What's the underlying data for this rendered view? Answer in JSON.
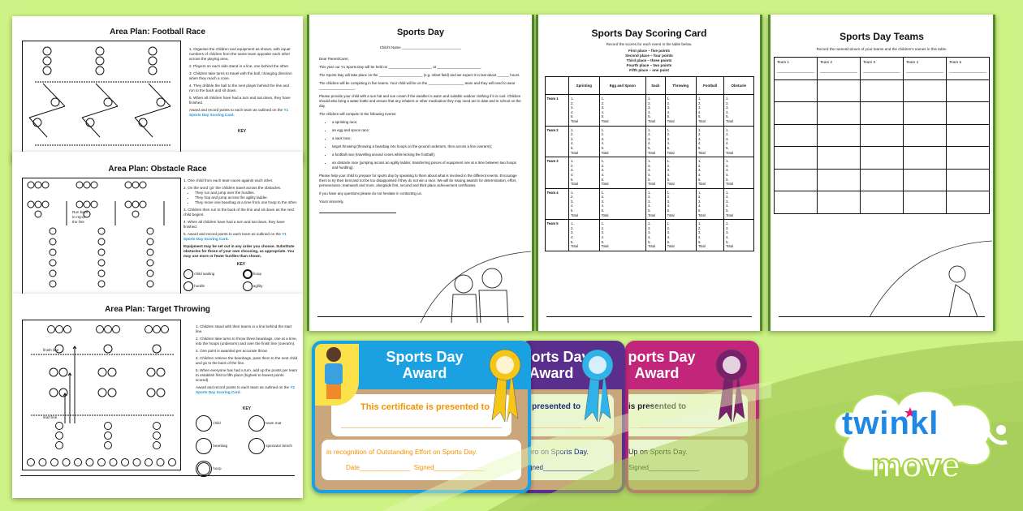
{
  "football": {
    "title": "Area Plan: Football Race",
    "steps": [
      "1. Organise the children and equipment as shown, with equal numbers of children from the same team opposite each other across the playing area.",
      "2. Players on each side stand in a line, one behind the other.",
      "3. Children take turns to travel with the ball, changing direction when they reach a cone.",
      "4. They dribble the ball to the next player behind the line and run to the back and sit down.",
      "5. When all children have had a turn and sat down, they have finished."
    ],
    "award_text": "Award and record points to each team as outlined on the",
    "award_link": "Y1 Sports Day Scoring Card.",
    "key": "KEY"
  },
  "obstacle": {
    "title": "Area Plan: Obstacle Race",
    "run_back": "Run back to rejoin the line",
    "steps": [
      "1. One child from each team races against each other.",
      "2. On the word 'go' the children travel across the obstacles.",
      "3. Children then run to the back of the line and sit down as the next child begins.",
      "4. When all children have had a turn and sat down, they have finished.",
      "5. Award and record points to each team as outlined on the"
    ],
    "substeps": [
      "They run and jump over the hurdles.",
      "They hop and jump across the agility ladder.",
      "They move one beanbag at a time from one hoop to the other."
    ],
    "award_link": "Y1 Sports Day Scoring Card.",
    "note": "Equipment may be set out in any order you choose. Substitute obstacles for those of your own choosing, as appropriate. You may use more or fewer hurdles than shown.",
    "key": "KEY",
    "key_items": [
      "child waiting",
      "hoop",
      "hurdle",
      "agility"
    ]
  },
  "target": {
    "title": "Area Plan: Target Throwing",
    "finish_line": "finish line",
    "start_line": "start line",
    "steps": [
      "1. Children stand with their teams in a line behind the start line.",
      "2. Children take turns to throw three beanbags, one at a time, into the hoops (underarm) and over the finish line (overarm).",
      "3. One point is awarded per accurate throw.",
      "4. Children retrieve the beanbags, pass them to the next child and go to the back of the line.",
      "5. When everyone has had a turn, add up the points per team to establish first to fifth place (highest to lowest points scored)."
    ],
    "award_text": "Award and record points to each team as outlined on the",
    "award_link": "Y1 Sports Day Scoring Card.",
    "key": "KEY",
    "key_items": [
      "child",
      "team mat",
      "beanbag",
      "spectator bench",
      "hoop"
    ]
  },
  "letter": {
    "title": "Sports Day",
    "childs_name": "Child's Name ______________________________",
    "paragraphs": [
      "Dear Parent/Carer,",
      "This year our Y1 Sports Day will be held on ______________________ at ______________________.",
      "The Sports Day will take place on the ______________________ (e.g. infant field) and we expect it to last about ______ hours.",
      "The children will be competing in five teams. Your child will be on the __________________ team and they will need to wear __________________.",
      "Please provide your child with a sun hat and sun cream if the weather is warm and suitable outdoor clothing if it is cool. Children should also bring a water bottle and ensure that any inhalers or other medication they may need are in date and in school on the day.",
      "The children will compete in the following events:"
    ],
    "events": [
      "a sprinting race;",
      "an egg and spoon race;",
      "a sack race;",
      "target throwing (throwing a beanbag into hoops on the ground underarm, then across a line overarm);",
      "a football race (travelling around cones while kicking the football);",
      "an obstacle race (jumping across an agility ladder, transferring pieces of equipment one at a time between two hoops and hurdling)."
    ],
    "closing": [
      "Please help your child to prepare for sports day by speaking to them about what is involved in the different events. Encourage them to try their best and not be too disappointed if they do not win a race. We will be issuing awards for determination, effort, perseverance, teamwork and more, alongside first, second and third place achievement certificates.",
      "If you have any questions please do not hesitate in contacting us.",
      "Yours sincerely,"
    ]
  },
  "scoring": {
    "title": "Sports Day Scoring Card",
    "intro": "Record the scores for each event in the table below.",
    "points": [
      "First place – five points",
      "Second place – four points",
      "Third place – three points",
      "Fourth place – two points",
      "Fifth place – one point"
    ],
    "columns": [
      "",
      "Sprinting",
      "Egg and Spoon",
      "Sack",
      "Throwing",
      "Football",
      "Obstacle"
    ],
    "teams": [
      "Team 1",
      "Team 2",
      "Team 3",
      "Team 4",
      "Team 5"
    ],
    "cell_lines": [
      "1.",
      "2.",
      "3.",
      "4.",
      "5.",
      "Total"
    ]
  },
  "teams": {
    "title": "Sports Day Teams",
    "intro": "Record the names/colours of your teams and the children's names in this table.",
    "headers": [
      "Team 1",
      "Team 2",
      "Team 3",
      "Team 4",
      "Team 5"
    ]
  },
  "certificates": [
    {
      "title": "Sports Day Award",
      "presented": "This certificate is presented to",
      "recognition": "in recognition of Outstanding Effort on Sports Day.",
      "date": "Date______________",
      "signed": "Signed______________",
      "color": "#1ba1e2",
      "text_color": "#f39200",
      "ribbon": "#f5c518"
    },
    {
      "title": "Sports Day Award",
      "presented": "is presented to",
      "recognition": "Hero on Sports Day.",
      "signed": "Signed______________",
      "color": "#5a2e8c",
      "text_color": "#1b2f7a",
      "ribbon": "#2fb3e8"
    },
    {
      "title": "Sports Day Award",
      "presented": "is presented to",
      "recognition": "Up on Sports Day.",
      "signed": "Signed______________",
      "color": "#c2267a",
      "text_color": "#222",
      "ribbon": "#7a1f6a"
    }
  ],
  "logo": {
    "line1": "twinkl",
    "line2": "move",
    "star_color": "#e5197a",
    "blue": "#1e88e5"
  },
  "colors": {
    "background": "#cdf285",
    "wave": "#a9d05c"
  }
}
